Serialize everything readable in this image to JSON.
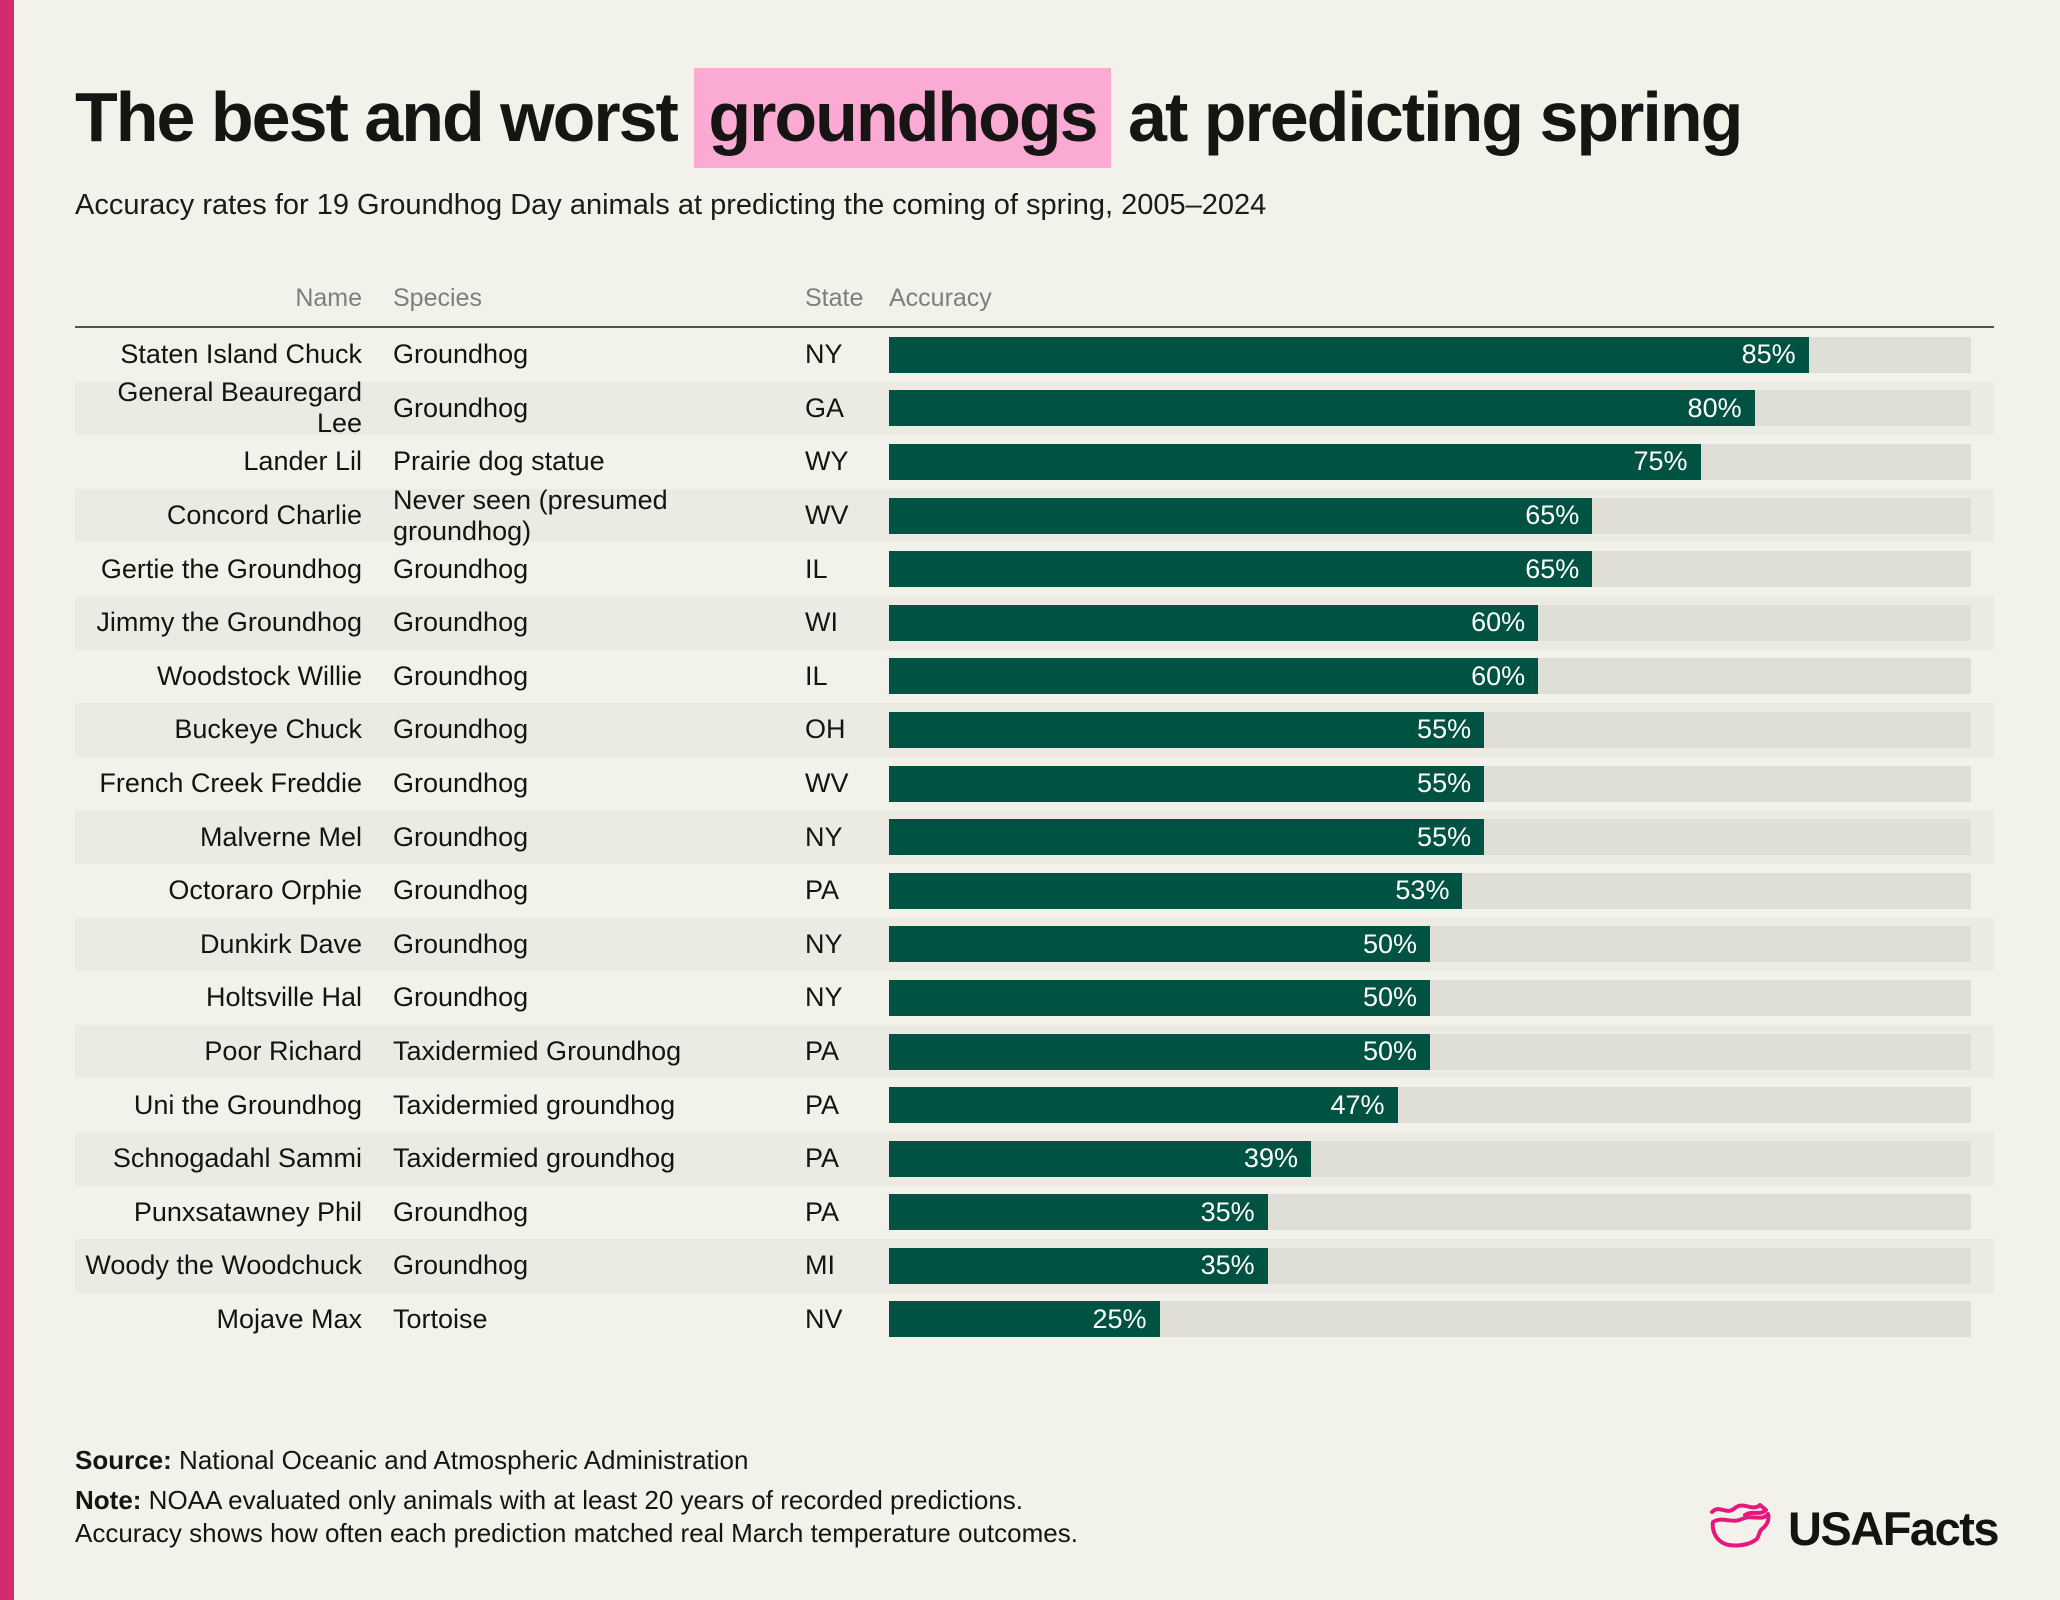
{
  "page": {
    "title_prefix": "The best and worst ",
    "title_highlight": "groundhogs",
    "title_suffix": " at predicting spring",
    "subtitle": "Accuracy rates for 19 Groundhog Day animals at predicting the coming of spring, 2005–2024"
  },
  "table": {
    "columns": {
      "name": "Name",
      "species": "Species",
      "state": "State",
      "accuracy": "Accuracy"
    },
    "rows": [
      {
        "name": "Staten Island Chuck",
        "species": "Groundhog",
        "state": "NY",
        "accuracy": 85,
        "accuracy_label": "85%"
      },
      {
        "name": "General Beauregard Lee",
        "species": "Groundhog",
        "state": "GA",
        "accuracy": 80,
        "accuracy_label": "80%"
      },
      {
        "name": "Lander Lil",
        "species": "Prairie dog statue",
        "state": "WY",
        "accuracy": 75,
        "accuracy_label": "75%"
      },
      {
        "name": "Concord Charlie",
        "species": "Never seen (presumed groundhog)",
        "state": "WV",
        "accuracy": 65,
        "accuracy_label": "65%"
      },
      {
        "name": "Gertie the Groundhog",
        "species": "Groundhog",
        "state": "IL",
        "accuracy": 65,
        "accuracy_label": "65%"
      },
      {
        "name": "Jimmy the Groundhog",
        "species": "Groundhog",
        "state": "WI",
        "accuracy": 60,
        "accuracy_label": "60%"
      },
      {
        "name": "Woodstock Willie",
        "species": "Groundhog",
        "state": "IL",
        "accuracy": 60,
        "accuracy_label": "60%"
      },
      {
        "name": "Buckeye Chuck",
        "species": "Groundhog",
        "state": "OH",
        "accuracy": 55,
        "accuracy_label": "55%"
      },
      {
        "name": "French Creek Freddie",
        "species": "Groundhog",
        "state": "WV",
        "accuracy": 55,
        "accuracy_label": "55%"
      },
      {
        "name": "Malverne Mel",
        "species": "Groundhog",
        "state": "NY",
        "accuracy": 55,
        "accuracy_label": "55%"
      },
      {
        "name": "Octoraro Orphie",
        "species": "Groundhog",
        "state": "PA",
        "accuracy": 53,
        "accuracy_label": "53%"
      },
      {
        "name": "Dunkirk Dave",
        "species": "Groundhog",
        "state": "NY",
        "accuracy": 50,
        "accuracy_label": "50%"
      },
      {
        "name": "Holtsville Hal",
        "species": "Groundhog",
        "state": "NY",
        "accuracy": 50,
        "accuracy_label": "50%"
      },
      {
        "name": "Poor Richard",
        "species": "Taxidermied Groundhog",
        "state": "PA",
        "accuracy": 50,
        "accuracy_label": "50%"
      },
      {
        "name": "Uni the Groundhog",
        "species": "Taxidermied groundhog",
        "state": "PA",
        "accuracy": 47,
        "accuracy_label": "47%"
      },
      {
        "name": "Schnogadahl Sammi",
        "species": "Taxidermied groundhog",
        "state": "PA",
        "accuracy": 39,
        "accuracy_label": "39%"
      },
      {
        "name": "Punxsatawney Phil",
        "species": "Groundhog",
        "state": "PA",
        "accuracy": 35,
        "accuracy_label": "35%"
      },
      {
        "name": "Woody the Woodchuck",
        "species": "Groundhog",
        "state": "MI",
        "accuracy": 35,
        "accuracy_label": "35%"
      },
      {
        "name": "Mojave Max",
        "species": "Tortoise",
        "state": "NV",
        "accuracy": 25,
        "accuracy_label": "25%"
      }
    ]
  },
  "footer": {
    "source_label": "Source:",
    "source_text": " National Oceanic and Atmospheric Administration",
    "note_label": "Note:",
    "note_text": " NOAA evaluated only animals with at least 20 years of recorded predictions.",
    "note_text_2": "Accuracy shows how often each prediction matched real March temperature outcomes.",
    "logo_text": "USAFacts"
  },
  "colors": {
    "background": "#f2f1ea",
    "accent_stripe_pink": "#d62a6e",
    "title_highlight_pink": "#fbaad4",
    "bar_green": "#005242",
    "bar_track_gray": "#dfded7",
    "row_alt_gray": "#ebeae3",
    "header_text_gray": "#7f7e79",
    "logo_pink": "#e5197d"
  },
  "chart_data": {
    "type": "bar",
    "orientation": "horizontal",
    "title": "The best and worst groundhogs at predicting spring",
    "subtitle": "Accuracy rates for 19 Groundhog Day animals at predicting the coming of spring, 2005–2024",
    "columns": [
      "Name",
      "Species",
      "State",
      "Accuracy"
    ],
    "categories": [
      "Staten Island Chuck",
      "General Beauregard Lee",
      "Lander Lil",
      "Concord Charlie",
      "Gertie the Groundhog",
      "Jimmy the Groundhog",
      "Woodstock Willie",
      "Buckeye Chuck",
      "French Creek Freddie",
      "Malverne Mel",
      "Octoraro Orphie",
      "Dunkirk Dave",
      "Holtsville Hal",
      "Poor Richard",
      "Uni the Groundhog",
      "Schnogadahl Sammi",
      "Punxsatawney Phil",
      "Woody the Woodchuck",
      "Mojave Max"
    ],
    "values": [
      85,
      80,
      75,
      65,
      65,
      60,
      60,
      55,
      55,
      55,
      53,
      50,
      50,
      50,
      47,
      39,
      35,
      35,
      25
    ],
    "unit": "%",
    "xlim": [
      0,
      100
    ],
    "bar_color": "#005242",
    "legend": "none",
    "grid": "off",
    "source": "National Oceanic and Atmospheric Administration"
  }
}
